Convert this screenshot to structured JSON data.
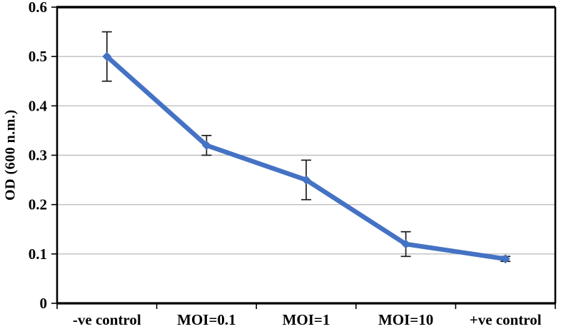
{
  "chart_data": {
    "type": "line",
    "categories": [
      "-ve control",
      "MOI=0.1",
      "MOI=1",
      "MOI=10",
      "+ve control"
    ],
    "series": [
      {
        "name": "OD 600",
        "values": [
          0.5,
          0.32,
          0.25,
          0.12,
          0.09
        ],
        "errors": [
          0.05,
          0.02,
          0.04,
          0.025,
          0.005
        ]
      }
    ],
    "title": "",
    "xlabel": "",
    "ylabel": "OD (600 n.m.)",
    "ylim": [
      0,
      0.6
    ],
    "yticks": [
      {
        "value": 0,
        "label": "0"
      },
      {
        "value": 0.1,
        "label": "0.1"
      },
      {
        "value": 0.2,
        "label": "0.2"
      },
      {
        "value": 0.3,
        "label": "0.3"
      },
      {
        "value": 0.4,
        "label": "0.4"
      },
      {
        "value": 0.5,
        "label": "0.5"
      },
      {
        "value": 0.6,
        "label": "0.6"
      }
    ],
    "grid": "horizontal",
    "legend": "none",
    "marker": "diamond",
    "colors": {
      "line": "#4472C4",
      "marker": "#4472C4",
      "gridline": "#BFBFBF",
      "axis": "#000000",
      "error_bar": "#1a1a1a",
      "text": "#000000",
      "background": "#ffffff"
    }
  }
}
